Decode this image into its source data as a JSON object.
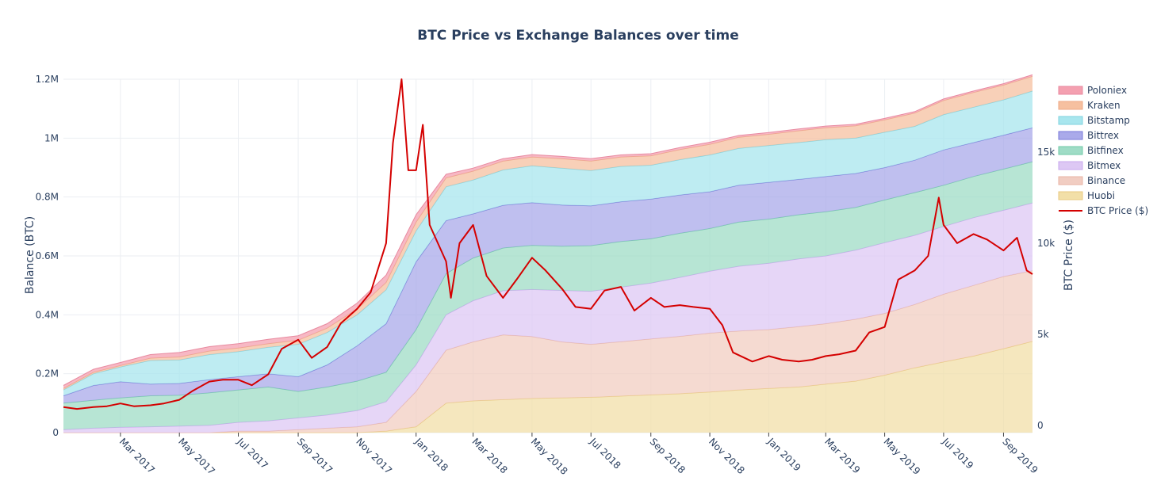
{
  "chart_data": {
    "type": "area",
    "title": "BTC Price vs Exchange Balances over time",
    "ylabel": "Balance (BTC)",
    "y2label": "BTC Price ($)",
    "x_range": [
      "2017-01-01",
      "2019-10-01"
    ],
    "ylim": [
      0,
      1200000
    ],
    "y2lim": [
      -400,
      19000
    ],
    "y_ticks": [
      0,
      200000,
      400000,
      600000,
      800000,
      1000000,
      1200000
    ],
    "y_tick_labels": [
      "0",
      "0.2M",
      "0.4M",
      "0.6M",
      "0.8M",
      "1M",
      "1.2M"
    ],
    "y2_ticks": [
      0,
      5000,
      10000,
      15000
    ],
    "y2_tick_labels": [
      "0",
      "5k",
      "10k",
      "15k"
    ],
    "x_ticks": [
      "2017-03-01",
      "2017-05-01",
      "2017-07-01",
      "2017-09-01",
      "2017-11-01",
      "2018-01-01",
      "2018-03-01",
      "2018-05-01",
      "2018-07-01",
      "2018-09-01",
      "2018-11-01",
      "2019-01-01",
      "2019-03-01",
      "2019-05-01",
      "2019-07-01",
      "2019-09-01"
    ],
    "x_tick_labels": [
      "Mar 2017",
      "May 2017",
      "Jul 2017",
      "Sep 2017",
      "Nov 2017",
      "Jan 2018",
      "Mar 2018",
      "May 2018",
      "Jul 2018",
      "Sep 2018",
      "Nov 2018",
      "Jan 2019",
      "Mar 2019",
      "May 2019",
      "Jul 2019",
      "Sep 2019"
    ],
    "stack_order": [
      "Huobi",
      "Binance",
      "Bitmex",
      "Bitfinex",
      "Bittrex",
      "Bitstamp",
      "Kraken",
      "Poloniex"
    ],
    "legend": [
      "Poloniex",
      "Kraken",
      "Bitstamp",
      "Bittrex",
      "Bitfinex",
      "Bitmex",
      "Binance",
      "Huobi",
      "BTC Price ($)"
    ],
    "legend_position": "top-right",
    "grid": true,
    "colors": {
      "Poloniex": "#f4a0b0",
      "Kraken": "#f6c0a0",
      "Bitstamp": "#a8e6ee",
      "Bittrex": "#aaaaea",
      "Bitfinex": "#9fdcc6",
      "Bitmex": "#ddc8f4",
      "Binance": "#f1cdc2",
      "Huobi": "#f2dfa8",
      "BTC Price ($)": "#d40000"
    },
    "line_colors": {
      "Poloniex": "#e88aa0",
      "Kraken": "#eda886",
      "Bitstamp": "#7fd3df",
      "Bittrex": "#7a7ad8",
      "Bitfinex": "#6fc9a6",
      "Bitmex": "#c9a8ee",
      "Binance": "#e8b4a4",
      "Huobi": "#e8c980"
    },
    "dates": [
      "2017-01-01",
      "2017-02-01",
      "2017-03-01",
      "2017-04-01",
      "2017-05-01",
      "2017-06-01",
      "2017-07-01",
      "2017-08-01",
      "2017-09-01",
      "2017-10-01",
      "2017-11-01",
      "2017-12-01",
      "2018-01-01",
      "2018-02-01",
      "2018-03-01",
      "2018-04-01",
      "2018-05-01",
      "2018-06-01",
      "2018-07-01",
      "2018-08-01",
      "2018-09-01",
      "2018-10-01",
      "2018-11-01",
      "2018-12-01",
      "2019-01-01",
      "2019-02-01",
      "2019-03-01",
      "2019-04-01",
      "2019-05-01",
      "2019-06-01",
      "2019-07-01",
      "2019-08-01",
      "2019-09-01",
      "2019-10-01"
    ],
    "series": [
      {
        "name": "Huobi",
        "values": [
          0,
          0,
          0,
          0,
          0,
          0,
          0,
          0,
          0,
          0,
          0,
          5000,
          20000,
          100000,
          108000,
          112000,
          116000,
          118000,
          120000,
          124000,
          128000,
          132000,
          138000,
          145000,
          150000,
          155000,
          165000,
          175000,
          195000,
          220000,
          240000,
          260000,
          285000,
          310000
        ]
      },
      {
        "name": "Binance",
        "values": [
          0,
          0,
          0,
          0,
          0,
          0,
          5000,
          5000,
          10000,
          15000,
          20000,
          30000,
          120000,
          180000,
          200000,
          220000,
          210000,
          190000,
          180000,
          185000,
          190000,
          195000,
          200000,
          200000,
          200000,
          205000,
          205000,
          210000,
          210000,
          215000,
          230000,
          240000,
          245000,
          240000
        ]
      },
      {
        "name": "Bitmex",
        "values": [
          10000,
          15000,
          18000,
          20000,
          22000,
          25000,
          30000,
          35000,
          40000,
          45000,
          55000,
          70000,
          90000,
          120000,
          140000,
          150000,
          160000,
          175000,
          180000,
          185000,
          190000,
          200000,
          210000,
          220000,
          225000,
          230000,
          230000,
          235000,
          240000,
          235000,
          230000,
          230000,
          225000,
          230000
        ]
      },
      {
        "name": "Bitfinex",
        "values": [
          90000,
          95000,
          100000,
          105000,
          105000,
          110000,
          110000,
          115000,
          90000,
          95000,
          100000,
          100000,
          120000,
          140000,
          145000,
          145000,
          150000,
          150000,
          155000,
          155000,
          150000,
          150000,
          145000,
          150000,
          150000,
          150000,
          150000,
          145000,
          145000,
          145000,
          140000,
          140000,
          140000,
          140000
        ]
      },
      {
        "name": "Bittrex",
        "values": [
          25000,
          50000,
          55000,
          40000,
          40000,
          45000,
          45000,
          45000,
          50000,
          75000,
          120000,
          165000,
          230000,
          180000,
          150000,
          145000,
          145000,
          140000,
          135000,
          135000,
          135000,
          130000,
          125000,
          125000,
          125000,
          120000,
          120000,
          115000,
          110000,
          110000,
          120000,
          115000,
          115000,
          115000
        ]
      },
      {
        "name": "Bitstamp",
        "values": [
          20000,
          40000,
          50000,
          80000,
          80000,
          85000,
          85000,
          90000,
          110000,
          110000,
          105000,
          115000,
          105000,
          115000,
          115000,
          120000,
          125000,
          125000,
          120000,
          120000,
          115000,
          120000,
          125000,
          125000,
          125000,
          125000,
          125000,
          120000,
          120000,
          115000,
          120000,
          120000,
          120000,
          125000
        ]
      },
      {
        "name": "Kraken",
        "values": [
          5000,
          5000,
          5000,
          8000,
          10000,
          12000,
          12000,
          12000,
          14000,
          15000,
          20000,
          25000,
          30000,
          30000,
          30000,
          30000,
          30000,
          32000,
          32000,
          32000,
          32000,
          34000,
          36000,
          38000,
          38000,
          40000,
          40000,
          42000,
          42000,
          45000,
          48000,
          50000,
          50000,
          50000
        ]
      },
      {
        "name": "Poloniex",
        "values": [
          10000,
          10000,
          10000,
          12000,
          15000,
          15000,
          15000,
          15000,
          15000,
          15000,
          20000,
          25000,
          25000,
          12000,
          10000,
          8000,
          8000,
          8000,
          8000,
          7000,
          7000,
          7000,
          7000,
          6000,
          6000,
          6000,
          6000,
          5000,
          5000,
          5000,
          5000,
          5000,
          5000,
          5000
        ]
      }
    ],
    "price_series": {
      "name": "BTC Price ($)",
      "dates": [
        "2017-01-01",
        "2017-01-15",
        "2017-02-01",
        "2017-02-15",
        "2017-03-01",
        "2017-03-15",
        "2017-04-01",
        "2017-04-15",
        "2017-05-01",
        "2017-05-15",
        "2017-06-01",
        "2017-06-15",
        "2017-07-01",
        "2017-07-15",
        "2017-08-01",
        "2017-08-15",
        "2017-09-01",
        "2017-09-15",
        "2017-10-01",
        "2017-10-15",
        "2017-11-01",
        "2017-11-15",
        "2017-12-01",
        "2017-12-08",
        "2017-12-17",
        "2017-12-24",
        "2018-01-01",
        "2018-01-08",
        "2018-01-15",
        "2018-02-01",
        "2018-02-06",
        "2018-02-15",
        "2018-03-01",
        "2018-03-15",
        "2018-04-01",
        "2018-04-15",
        "2018-05-01",
        "2018-05-15",
        "2018-06-01",
        "2018-06-15",
        "2018-07-01",
        "2018-07-15",
        "2018-08-01",
        "2018-08-15",
        "2018-09-01",
        "2018-09-15",
        "2018-10-01",
        "2018-10-15",
        "2018-11-01",
        "2018-11-14",
        "2018-11-25",
        "2018-12-15",
        "2019-01-01",
        "2019-01-15",
        "2019-02-01",
        "2019-02-15",
        "2019-03-01",
        "2019-03-15",
        "2019-04-01",
        "2019-04-15",
        "2019-05-01",
        "2019-05-15",
        "2019-06-01",
        "2019-06-15",
        "2019-06-26",
        "2019-07-01",
        "2019-07-15",
        "2019-08-01",
        "2019-08-15",
        "2019-09-01",
        "2019-09-15",
        "2019-09-25",
        "2019-10-01"
      ],
      "values": [
        1000,
        900,
        1000,
        1050,
        1200,
        1050,
        1100,
        1200,
        1400,
        1900,
        2400,
        2500,
        2500,
        2200,
        2800,
        4200,
        4700,
        3700,
        4300,
        5600,
        6400,
        7300,
        10000,
        15500,
        19000,
        14000,
        14000,
        16500,
        11000,
        9000,
        7000,
        10000,
        11000,
        8200,
        7000,
        8000,
        9200,
        8500,
        7500,
        6500,
        6400,
        7400,
        7600,
        6300,
        7000,
        6500,
        6600,
        6500,
        6400,
        5500,
        4000,
        3500,
        3800,
        3600,
        3500,
        3600,
        3800,
        3900,
        4100,
        5100,
        5400,
        8000,
        8500,
        9300,
        12500,
        11000,
        10000,
        10500,
        10200,
        9600,
        10300,
        8500,
        8300
      ]
    }
  }
}
